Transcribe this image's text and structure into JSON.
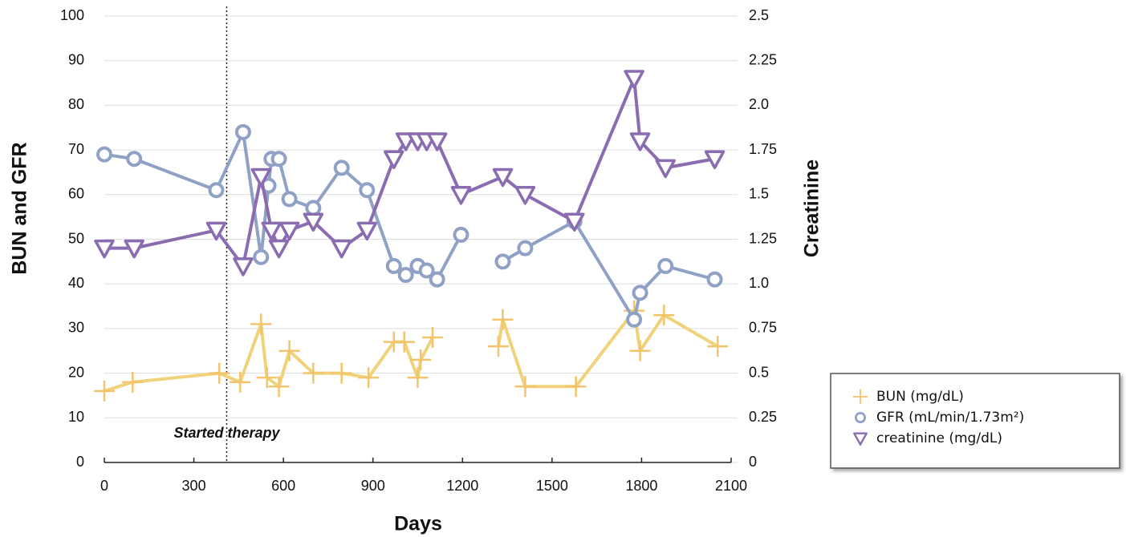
{
  "chart_data": {
    "type": "line",
    "xlabel": "Days",
    "ylabel": "BUN and GFR",
    "y2label": "Creatinine",
    "xlim": [
      0,
      2100
    ],
    "xticks": [
      0,
      300,
      600,
      900,
      1200,
      1500,
      1800,
      2100
    ],
    "ylim": [
      0,
      100
    ],
    "yticks": [
      0,
      10,
      20,
      30,
      40,
      50,
      60,
      70,
      80,
      90,
      100
    ],
    "y2lim": [
      0,
      2.5
    ],
    "y2ticks": [
      0,
      0.25,
      0.5,
      0.75,
      {
        "value": 1,
        "label": "1.0"
      },
      1.25,
      1.5,
      1.75,
      {
        "value": 2,
        "label": "2.0"
      },
      2.25,
      2.5
    ],
    "grid": true,
    "legend": "right",
    "annotation": {
      "text": "Started therapy",
      "x": 410
    },
    "series": [
      {
        "name": "BUN (mg/dL)",
        "color": "#f2c46c",
        "line_color": "#f0d27a",
        "marker": "plus",
        "x": [
          0,
          95,
          385,
          455,
          525,
          545,
          585,
          620,
          700,
          795,
          885,
          970,
          1005,
          1050,
          1060,
          1100,
          null,
          1320,
          1335,
          1410,
          1580,
          1775,
          1795,
          1875,
          2055
        ],
        "values": [
          16,
          18,
          20,
          18,
          31,
          19,
          17,
          25,
          20,
          20,
          19,
          27,
          27,
          19,
          23,
          28,
          null,
          26,
          32,
          17,
          17,
          34,
          25,
          33,
          26
        ]
      },
      {
        "name": "GFR (mL/min/1.73m²)",
        "color": "#8fa2c6",
        "line_color": "#8fa2c6",
        "marker": "circle",
        "x": [
          0,
          100,
          375,
          465,
          525,
          550,
          560,
          585,
          620,
          700,
          795,
          880,
          970,
          1010,
          1050,
          1080,
          1115,
          1195,
          null,
          1335,
          1410,
          1575,
          1775,
          1795,
          1880,
          2045
        ],
        "values": [
          69,
          68,
          61,
          74,
          46,
          62,
          68,
          68,
          59,
          57,
          66,
          61,
          44,
          42,
          44,
          43,
          41,
          51,
          null,
          45,
          48,
          54,
          32,
          38,
          44,
          41
        ]
      },
      {
        "name": "creatinine (mg/dL)",
        "color": "#8b6cb0",
        "line_color": "#8b6cb0",
        "marker": "triangle",
        "axis": "y2",
        "x": [
          0,
          100,
          375,
          465,
          525,
          560,
          585,
          620,
          700,
          795,
          880,
          970,
          1010,
          1050,
          1080,
          1115,
          1195,
          1335,
          1410,
          1575,
          1775,
          1795,
          1880,
          2045
        ],
        "values": [
          1.2,
          1.2,
          1.3,
          1.1,
          1.6,
          1.3,
          1.2,
          1.3,
          1.35,
          1.2,
          1.3,
          1.7,
          1.8,
          1.8,
          1.8,
          1.8,
          1.5,
          1.6,
          1.5,
          1.35,
          2.15,
          1.8,
          1.65,
          1.7
        ]
      }
    ]
  }
}
